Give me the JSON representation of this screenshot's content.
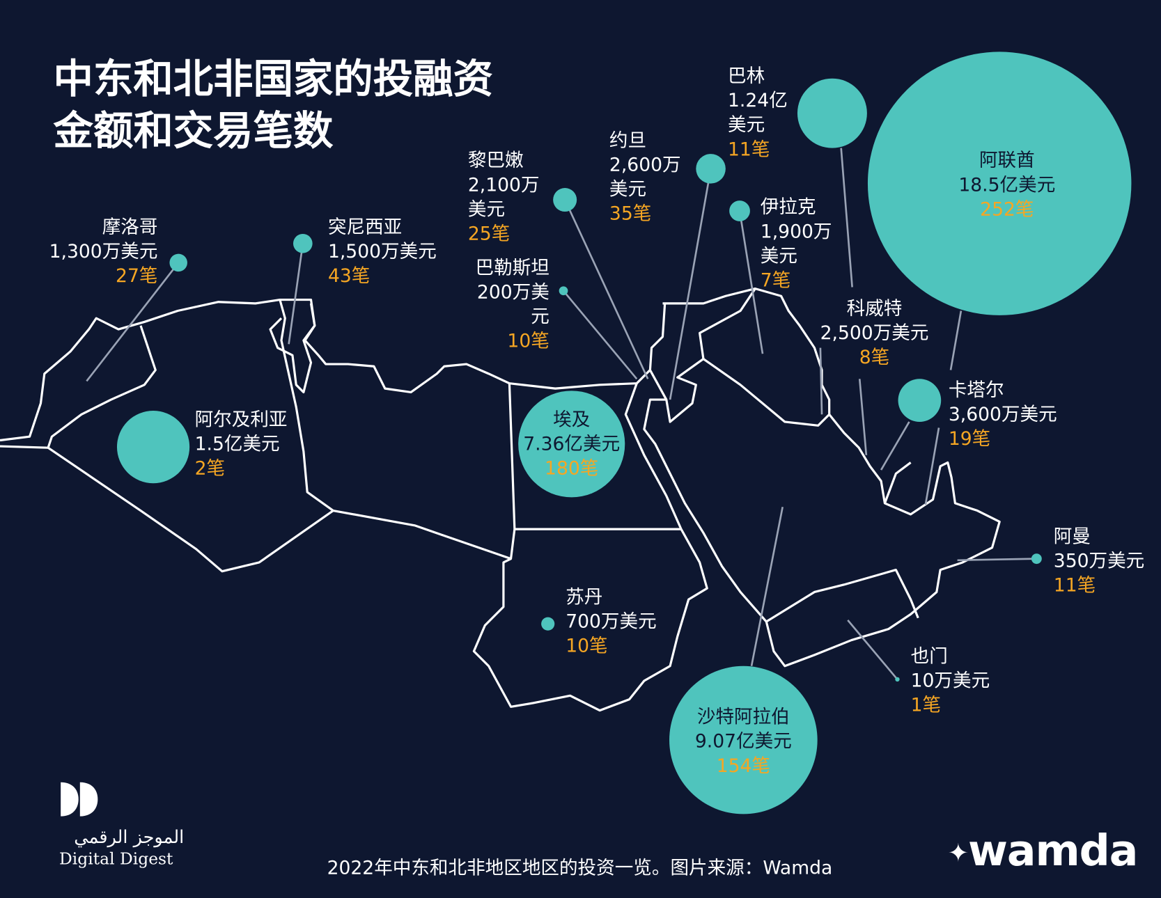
{
  "title": {
    "line1": "中东和北非国家的投融资",
    "line2": "金额和交易笔数"
  },
  "colors": {
    "background": "#0e1730",
    "bubble": "#4fc4bd",
    "count": "#f5a623",
    "border": "#ffffff"
  },
  "countries": [
    {
      "key": "morocco",
      "name": "摩洛哥",
      "lines": [
        "1,300万美元"
      ],
      "count": "27笔",
      "amount_usd_m": 13,
      "deals": 27
    },
    {
      "key": "tunisia",
      "name": "突尼西亚",
      "lines": [
        "1,500万美元"
      ],
      "count": "43笔",
      "amount_usd_m": 15,
      "deals": 43
    },
    {
      "key": "algeria",
      "name": "阿尔及利亚",
      "lines": [
        "1.5亿美元"
      ],
      "count": "2笔",
      "amount_usd_m": 150,
      "deals": 2
    },
    {
      "key": "lebanon",
      "name": "黎巴嫩",
      "lines": [
        "2,100万",
        "美元"
      ],
      "count": "25笔",
      "amount_usd_m": 21,
      "deals": 25
    },
    {
      "key": "palestine",
      "name": "巴勒斯坦",
      "lines": [
        "200万美",
        "元"
      ],
      "count": "10笔",
      "amount_usd_m": 2,
      "deals": 10
    },
    {
      "key": "jordan",
      "name": "约旦",
      "lines": [
        "2,600万",
        "美元"
      ],
      "count": "35笔",
      "amount_usd_m": 26,
      "deals": 35
    },
    {
      "key": "bahrain",
      "name": "巴林",
      "lines": [
        "1.24亿",
        "美元"
      ],
      "count": "11笔",
      "amount_usd_m": 124,
      "deals": 11
    },
    {
      "key": "iraq",
      "name": "伊拉克",
      "lines": [
        "1,900万",
        "美元"
      ],
      "count": "7笔",
      "amount_usd_m": 19,
      "deals": 7
    },
    {
      "key": "uae",
      "name": "阿联酋",
      "lines": [
        "18.5亿美元"
      ],
      "count": "252笔",
      "amount_usd_m": 1850,
      "deals": 252
    },
    {
      "key": "kuwait",
      "name": "科威特",
      "lines": [
        "2,500万美元"
      ],
      "count": "8笔",
      "amount_usd_m": 25,
      "deals": 8
    },
    {
      "key": "qatar",
      "name": "卡塔尔",
      "lines": [
        "3,600万美元"
      ],
      "count": "19笔",
      "amount_usd_m": 36,
      "deals": 19
    },
    {
      "key": "egypt",
      "name": "埃及",
      "lines": [
        "7.36亿美元"
      ],
      "count": "180笔",
      "amount_usd_m": 736,
      "deals": 180
    },
    {
      "key": "oman",
      "name": "阿曼",
      "lines": [
        "350万美元"
      ],
      "count": "11笔",
      "amount_usd_m": 3.5,
      "deals": 11
    },
    {
      "key": "sudan",
      "name": "苏丹",
      "lines": [
        "700万美元"
      ],
      "count": "10笔",
      "amount_usd_m": 7,
      "deals": 10
    },
    {
      "key": "saudi",
      "name": "沙特阿拉伯",
      "lines": [
        "9.07亿美元"
      ],
      "count": "154笔",
      "amount_usd_m": 907,
      "deals": 154
    },
    {
      "key": "yemen",
      "name": "也门",
      "lines": [
        "10万美元"
      ],
      "count": "1笔",
      "amount_usd_m": 0.1,
      "deals": 1
    }
  ],
  "footer": {
    "caption": "2022年中东和北非地区地区的投资一览。图片来源：Wamda"
  },
  "logos": {
    "digital_digest_ar": "الموجز الرقمي",
    "digital_digest_en": "Digital Digest",
    "wamda": "wamda"
  }
}
